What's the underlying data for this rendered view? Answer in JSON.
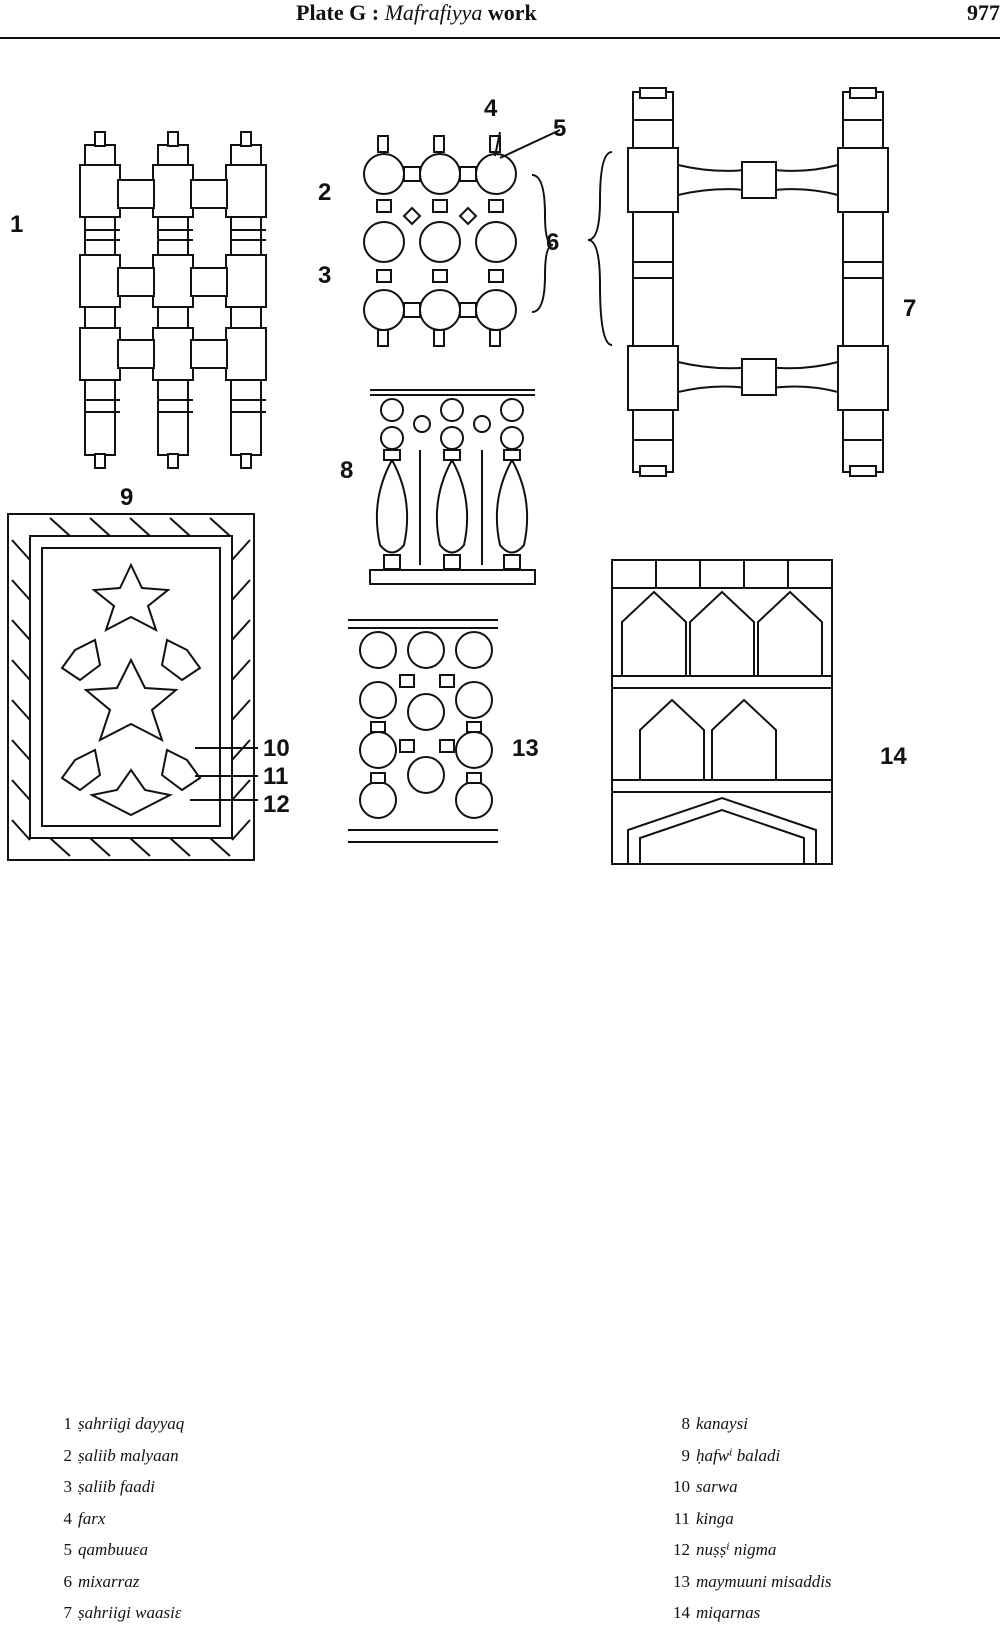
{
  "header": {
    "plate_prefix": "Plate G :",
    "plate_title": "Mafrafiyya",
    "plate_suffix": "work",
    "page_number": "977"
  },
  "figure_labels": [
    "1",
    "2",
    "3",
    "4",
    "5",
    "6",
    "7",
    "8",
    "9",
    "10",
    "11",
    "12",
    "13",
    "14"
  ],
  "legend": {
    "left": [
      {
        "num": "1",
        "term": "ṣahriigi dayyaq"
      },
      {
        "num": "2",
        "term": "ṣaliib malyaan"
      },
      {
        "num": "3",
        "term": "ṣaliib faadi"
      },
      {
        "num": "4",
        "term": "farx"
      },
      {
        "num": "5",
        "term": "qambuuɛa"
      },
      {
        "num": "6",
        "term": "mixarraz"
      },
      {
        "num": "7",
        "term": "ṣahriigi waasiɛ"
      }
    ],
    "right": [
      {
        "num": "8",
        "term": "kanaysi"
      },
      {
        "num": "9",
        "term": "ḥafwⁱ baladi"
      },
      {
        "num": "10",
        "term": "sarwa"
      },
      {
        "num": "11",
        "term": "kinga"
      },
      {
        "num": "12",
        "term": "nuṣṣⁱ nigma"
      },
      {
        "num": "13",
        "term": "maymuuni misaddis"
      },
      {
        "num": "14",
        "term": "miqarnas"
      }
    ]
  }
}
